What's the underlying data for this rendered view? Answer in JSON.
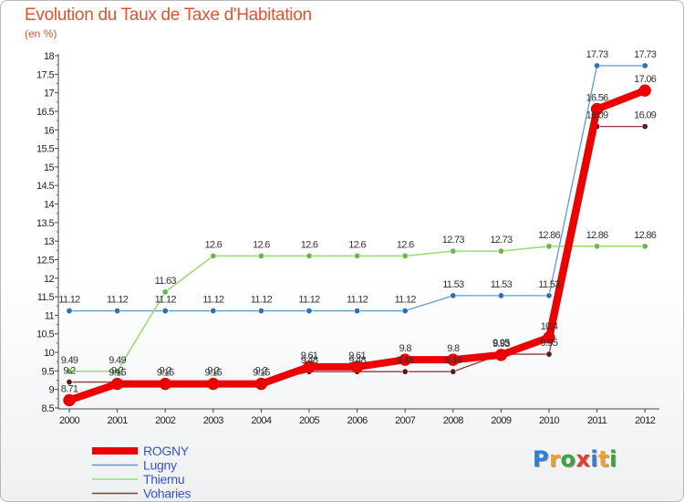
{
  "title": "Evolution du Taux de Taxe d'Habitation",
  "unit": "(en %)",
  "logo": {
    "letters": [
      "P",
      "r",
      "o",
      "x",
      "i",
      "t",
      "i"
    ],
    "colors": [
      "#2e7fd1",
      "#f0a02a",
      "#3aa53a",
      "#e33c2e",
      "#2e7fd1",
      "#f0a02a",
      "#3aa53a"
    ]
  },
  "chart_data": {
    "type": "line",
    "x": [
      2000,
      2001,
      2002,
      2003,
      2004,
      2005,
      2006,
      2007,
      2008,
      2009,
      2010,
      2011,
      2012
    ],
    "ylim": [
      8.5,
      18
    ],
    "yticks": [
      "8.5",
      "9",
      "9.5",
      "10",
      "10.5",
      "11",
      "11.5",
      "12",
      "12.5",
      "13",
      "13.5",
      "14",
      "14.5",
      "15",
      "15.5",
      "16",
      "16.5",
      "17",
      "17.5",
      "18"
    ],
    "xticks": [
      "2000",
      "2001",
      "2002",
      "2003",
      "2004",
      "2005",
      "2006",
      "2007",
      "2008",
      "2009",
      "2010",
      "2011",
      "2012"
    ],
    "grid": false,
    "legend_position": "bottom-left",
    "series": [
      {
        "name": "Lugny",
        "color": "#5b9bd5",
        "marker": "#2f6fb5",
        "width": 1.3,
        "values": [
          11.12,
          11.12,
          11.12,
          11.12,
          11.12,
          11.12,
          11.12,
          11.12,
          11.53,
          11.53,
          11.53,
          17.73,
          17.73
        ],
        "labels": [
          "11.12",
          "11.12",
          "11.12",
          "11.12",
          "11.12",
          "11.12",
          "11.12",
          "11.12",
          "11.53",
          "11.53",
          "11.53",
          "17.73",
          "17.73"
        ]
      },
      {
        "name": "Thiernu",
        "color": "#99dd77",
        "marker": "#66bb44",
        "width": 1.6,
        "values": [
          9.49,
          9.49,
          11.63,
          12.6,
          12.6,
          12.6,
          12.6,
          12.6,
          12.73,
          12.73,
          12.86,
          12.86,
          12.86
        ],
        "labels": [
          "9.49",
          "9.49",
          "11.63",
          "12.6",
          "12.6",
          "12.6",
          "12.6",
          "12.6",
          "12.73",
          "12.73",
          "12.86",
          "12.86",
          "12.86"
        ]
      },
      {
        "name": "Voharies",
        "color": "#8a3a3a",
        "marker": "#5a1a1a",
        "width": 1.3,
        "values": [
          9.2,
          9.2,
          9.2,
          9.2,
          9.2,
          9.48,
          9.48,
          9.48,
          9.48,
          9.95,
          9.95,
          16.09,
          16.09
        ],
        "labels": [
          "9.2",
          "9.2",
          "9.2",
          "9.2",
          "9.2",
          "9.48",
          "9.48",
          "9.48",
          "9.48",
          "9.95",
          "9.95",
          "16.09",
          "16.09"
        ]
      },
      {
        "name": "ROGNY",
        "color": "#ee0000",
        "marker": "#ee0000",
        "width": 8,
        "values": [
          8.71,
          9.15,
          9.15,
          9.15,
          9.15,
          9.61,
          9.61,
          9.8,
          9.8,
          9.93,
          10.4,
          16.56,
          17.06
        ],
        "labels": [
          "8.71",
          "9.15",
          "9.15",
          "9.15",
          "9.15",
          "9.61",
          "9.61",
          "9.8",
          "9.8",
          "9.93",
          "10.4",
          "16.56",
          "17.06"
        ]
      }
    ],
    "legend_order": [
      "ROGNY",
      "Lugny",
      "Thiernu",
      "Voharies"
    ]
  }
}
